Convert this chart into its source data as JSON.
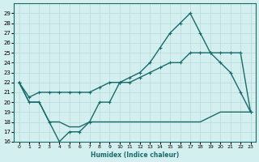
{
  "xlabel": "Humidex (Indice chaleur)",
  "bg_color": "#d4efef",
  "grid_color": "#b8dada",
  "line_color": "#1a6b6b",
  "xlim": [
    -0.5,
    23.5
  ],
  "ylim": [
    16,
    30
  ],
  "yticks": [
    16,
    17,
    18,
    19,
    20,
    21,
    22,
    23,
    24,
    25,
    26,
    27,
    28,
    29
  ],
  "xticks": [
    0,
    1,
    2,
    3,
    4,
    5,
    6,
    7,
    8,
    9,
    10,
    11,
    12,
    13,
    14,
    15,
    16,
    17,
    18,
    19,
    20,
    21,
    22,
    23
  ],
  "line1_x": [
    0,
    1,
    2,
    3,
    4,
    5,
    6,
    7,
    8,
    9,
    10,
    11,
    12,
    13,
    14,
    15,
    16,
    17,
    18,
    19,
    20,
    21,
    22,
    23
  ],
  "line1_y": [
    22,
    20,
    20,
    18,
    16,
    17,
    17,
    18,
    20,
    20,
    22,
    22.5,
    23,
    24,
    25.5,
    27,
    28,
    29,
    27,
    25,
    24,
    23,
    21,
    19
  ],
  "line2_x": [
    0,
    1,
    2,
    3,
    4,
    5,
    6,
    7,
    8,
    9,
    10,
    11,
    12,
    13,
    14,
    15,
    16,
    17,
    18,
    19,
    20,
    21,
    22,
    23
  ],
  "line2_y": [
    22,
    20.5,
    21,
    21,
    21,
    21,
    21,
    21,
    21.5,
    22,
    22,
    22,
    22.5,
    23,
    23.5,
    24,
    24,
    25,
    25,
    25,
    25,
    25,
    25,
    19
  ],
  "line3_x": [
    0,
    1,
    2,
    3,
    4,
    5,
    6,
    7,
    8,
    9,
    10,
    11,
    12,
    13,
    14,
    15,
    16,
    17,
    18,
    19,
    20,
    21,
    22,
    23
  ],
  "line3_y": [
    22,
    20,
    20,
    18,
    18,
    17.5,
    17.5,
    18,
    18,
    18,
    18,
    18,
    18,
    18,
    18,
    18,
    18,
    18,
    18,
    18.5,
    19,
    19,
    19,
    19
  ]
}
